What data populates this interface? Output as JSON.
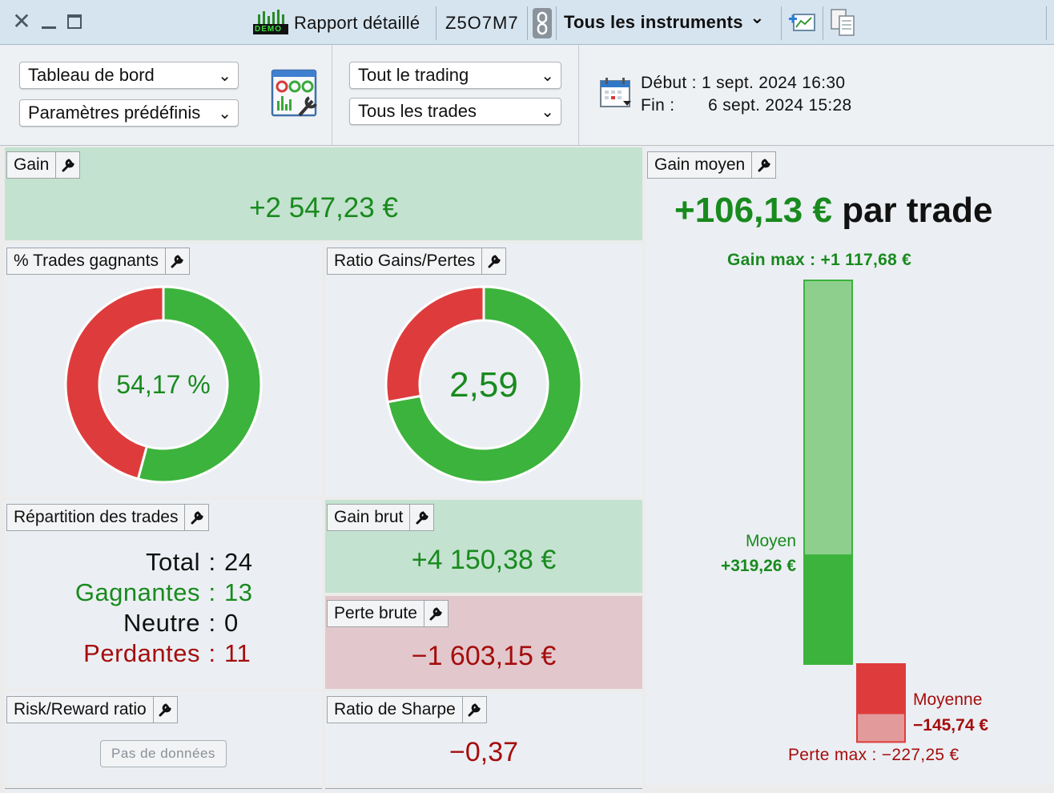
{
  "titlebar": {
    "demo_badge": "DEMO",
    "report_title": "Rapport détaillé",
    "account_id": "Z5O7M7",
    "instruments": "Tous les instruments",
    "instruments_chevron": "⌄"
  },
  "toolbar": {
    "view_select": "Tableau de bord",
    "preset_select": "Paramètres prédéfinis",
    "trading_select": "Tout le trading",
    "trades_select": "Tous les trades",
    "start_label": "Début :",
    "start_value": "1 sept. 2024 16:30",
    "end_label": "Fin :",
    "end_value": "6 sept. 2024 15:28"
  },
  "panels": {
    "gain": {
      "title": "Gain",
      "value": "+2 547,23 €"
    },
    "win_pct": {
      "title": "% Trades gagnants",
      "value": "54,17 %",
      "fraction": 0.5417
    },
    "ratio": {
      "title": "Ratio Gains/Pertes",
      "value": "2,59",
      "fraction": 0.7214
    },
    "distribution": {
      "title": "Répartition des trades",
      "rows": [
        {
          "label": "Total",
          "sep": ":",
          "value": "24",
          "kind": "neutral"
        },
        {
          "label": "Gagnantes",
          "sep": ":",
          "value": "13",
          "kind": "win"
        },
        {
          "label": "Neutre",
          "sep": ":",
          "value": "0",
          "kind": "neutral"
        },
        {
          "label": "Perdantes",
          "sep": ":",
          "value": "11",
          "kind": "loss"
        }
      ]
    },
    "gross_gain": {
      "title": "Gain brut",
      "value": "+4 150,38 €"
    },
    "gross_loss": {
      "title": "Perte brute",
      "value": "−1 603,15 €"
    },
    "risk_reward": {
      "title": "Risk/Reward ratio",
      "no_data": "Pas de données"
    },
    "sharpe": {
      "title": "Ratio de Sharpe",
      "value": "−0,37"
    },
    "avg_gain": {
      "title": "Gain moyen",
      "value": "+106,13 €",
      "suffix": "par trade",
      "max_gain_label": "Gain max : +1 117,68 €",
      "avg_win_label": "Moyen",
      "avg_win_value": "+319,26 €",
      "avg_loss_label": "Moyenne",
      "avg_loss_value": "−145,74 €",
      "max_loss_label": "Perte max : −227,25 €"
    }
  },
  "chart_data": {
    "type": "bar",
    "categories": [
      "Gain max",
      "Moyen",
      "Moyenne",
      "Perte max"
    ],
    "values": [
      1117.68,
      319.26,
      -145.74,
      -227.25
    ]
  },
  "colors": {
    "win": "#3cb33c",
    "loss": "#de3c3c",
    "win_light": "#8ecf8e",
    "loss_light": "#e29a9a"
  }
}
